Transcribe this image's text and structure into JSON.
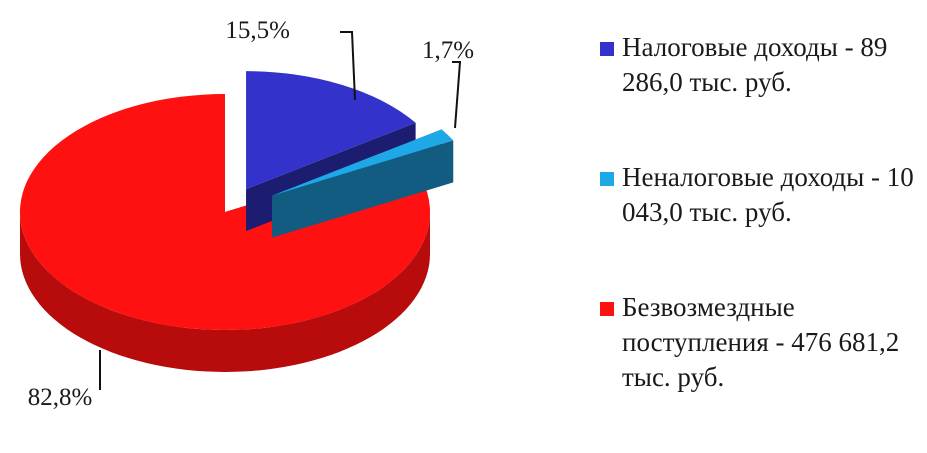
{
  "chart_data": {
    "type": "pie",
    "title": "",
    "slices": [
      {
        "label": "Налоговые доходы - 89 286,0 тыс. руб.",
        "value": 89286.0,
        "percent_label": "15,5%",
        "color": "#3333cc",
        "exploded": true
      },
      {
        "label": "Неналоговые доходы - 10 043,0 тыс. руб.",
        "value": 10043.0,
        "percent_label": "1,7%",
        "color": "#1ea8e8",
        "exploded": true
      },
      {
        "label": "Безвозмездные поступления - 476 681,2 тыс. руб.",
        "value": 476681.2,
        "percent_label": "82,8%",
        "color": "#ff1111",
        "exploded": false
      }
    ],
    "legend_position": "right",
    "style": "3d"
  }
}
